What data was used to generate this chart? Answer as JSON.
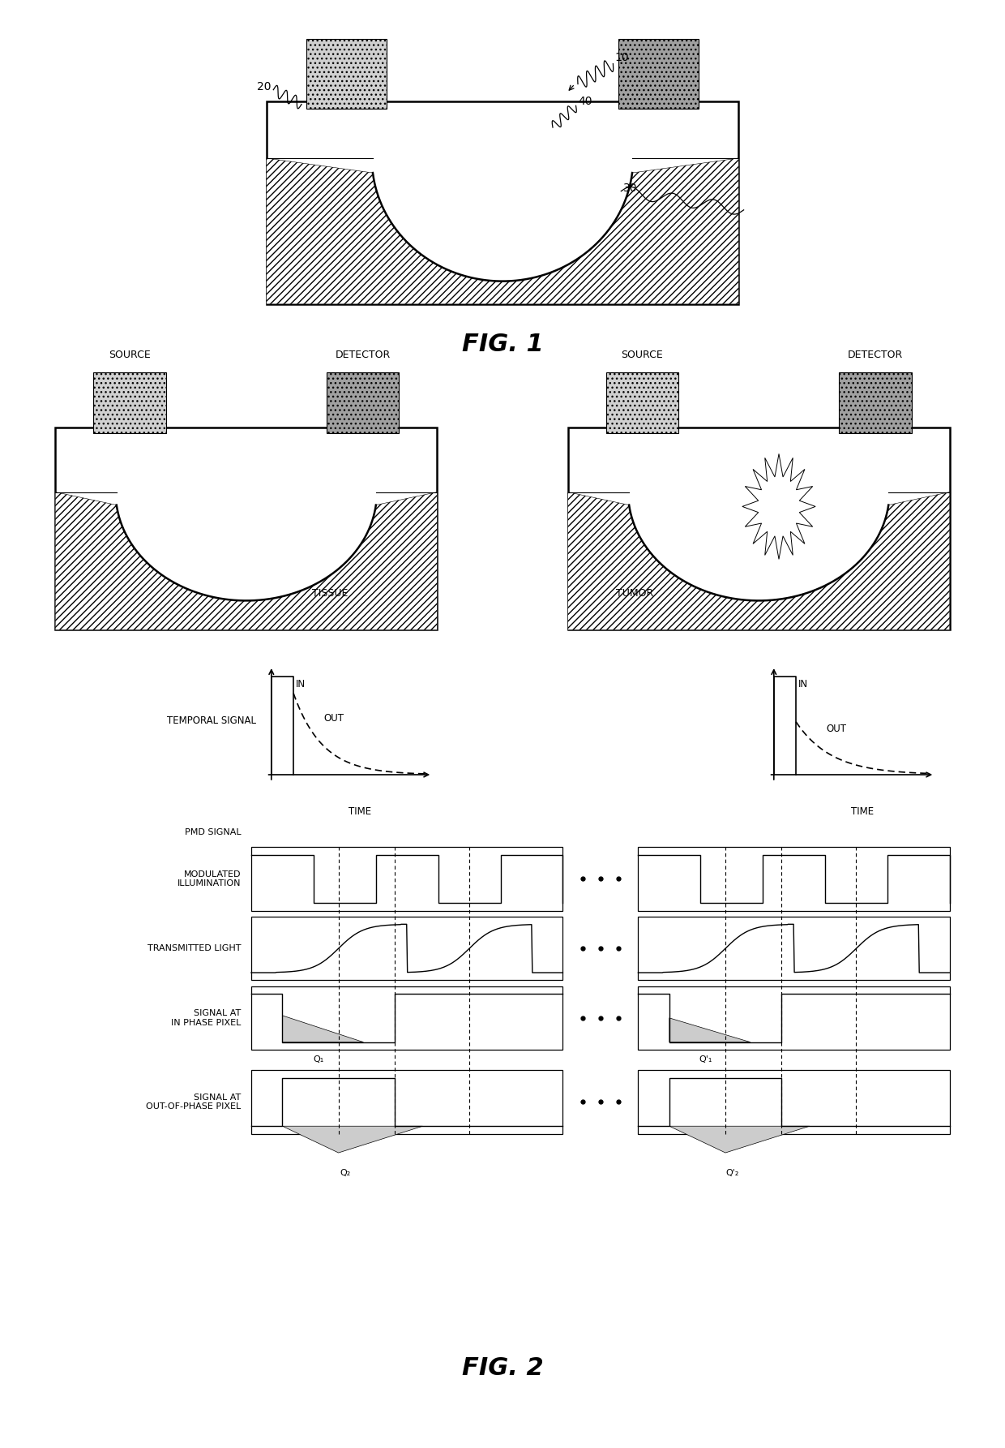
{
  "bg_color": "#ffffff",
  "fig_width": 12.4,
  "fig_height": 17.85,
  "fig1_label": "FIG. 1",
  "fig2_label": "FIG. 2",
  "source_label": "SOURCE",
  "detector_label": "DETECTOR",
  "tissue_label": "TISSUE",
  "tumor_label": "TUMOR",
  "temporal_signal_label": "TEMPORAL SIGNAL",
  "time_label": "TIME",
  "in_label": "IN",
  "out_label": "OUT",
  "pmd_signal_label": "PMD SIGNAL",
  "modulated_illumination_label": "MODULATED\nILLUMINATION",
  "transmitted_light_label": "TRANSMITTED LIGHT",
  "signal_in_phase_label": "SIGNAL AT\nIN PHASE PIXEL",
  "signal_out_phase_label": "SIGNAL AT\nOUT-OF-PHASE PIXEL",
  "q1_label": "Q₁",
  "q2_label": "Q₂",
  "q1p_label": "Q'₁",
  "q2p_label": "Q'₂"
}
